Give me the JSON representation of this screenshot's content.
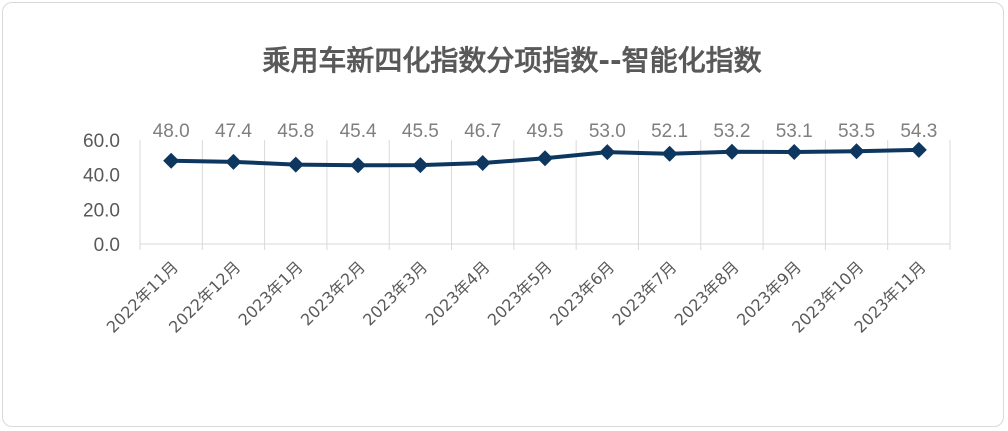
{
  "chart_data": {
    "type": "line",
    "title": "乘用车新四化指数分项指数--智能化指数",
    "categories": [
      "2022年11月",
      "2022年12月",
      "2023年1月",
      "2023年2月",
      "2023年3月",
      "2023年4月",
      "2023年5月",
      "2023年6月",
      "2023年7月",
      "2023年8月",
      "2023年9月",
      "2023年10月",
      "2023年11月"
    ],
    "values": [
      48.0,
      47.4,
      45.8,
      45.4,
      45.5,
      46.7,
      49.5,
      53.0,
      52.1,
      53.2,
      53.1,
      53.5,
      54.3
    ],
    "data_labels": [
      "48.0",
      "47.4",
      "45.8",
      "45.4",
      "45.5",
      "46.7",
      "49.5",
      "53.0",
      "52.1",
      "53.2",
      "53.1",
      "53.5",
      "54.3"
    ],
    "ylim": [
      0,
      60
    ],
    "yticks": [
      "0.0",
      "20.0",
      "40.0",
      "60.0"
    ],
    "grid": "vertical",
    "marker": "diamond",
    "colors": {
      "line": "#0e3760",
      "grid": "#d9d9d9",
      "label": "#7f7f7f",
      "axis_text": "#595959"
    }
  }
}
